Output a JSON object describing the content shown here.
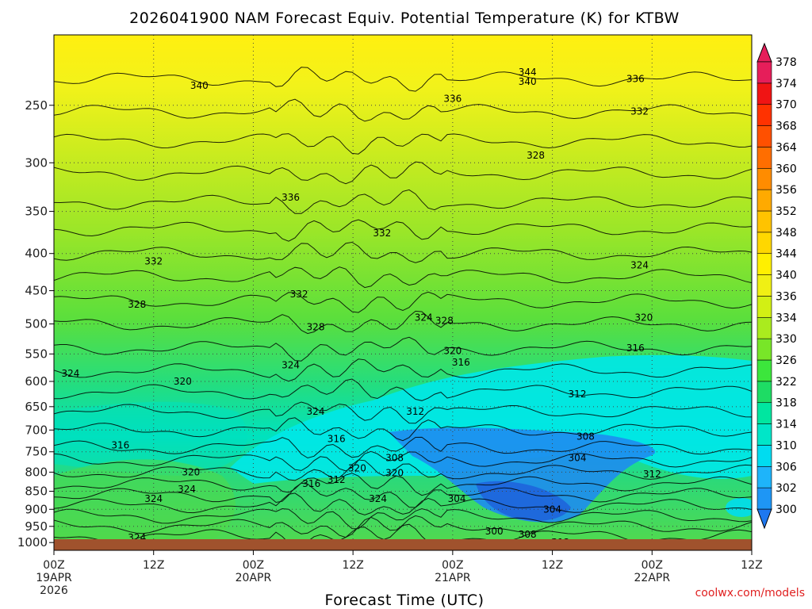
{
  "chart_data": {
    "type": "heatmap",
    "title": "2026041900 NAM Forecast Equiv. Potential Temperature (K) for KTBW",
    "xlabel": "Forecast Time (UTC)",
    "ylabel": "",
    "credit": "coolwx.com/models",
    "x_ticks": [
      {
        "hours": 0,
        "lines": [
          "00Z",
          "19APR",
          "2026"
        ]
      },
      {
        "hours": 12,
        "lines": [
          "12Z"
        ]
      },
      {
        "hours": 24,
        "lines": [
          "00Z",
          "20APR"
        ]
      },
      {
        "hours": 36,
        "lines": [
          "12Z"
        ]
      },
      {
        "hours": 48,
        "lines": [
          "00Z",
          "21APR"
        ]
      },
      {
        "hours": 60,
        "lines": [
          "12Z"
        ]
      },
      {
        "hours": 72,
        "lines": [
          "00Z",
          "22APR"
        ]
      },
      {
        "hours": 84,
        "lines": [
          "12Z"
        ]
      }
    ],
    "xlim": [
      0,
      84
    ],
    "y_ticks": [
      250,
      300,
      350,
      400,
      450,
      500,
      550,
      600,
      650,
      700,
      750,
      800,
      850,
      900,
      950,
      1000
    ],
    "ylim": [
      200,
      1025
    ],
    "yscale": "log",
    "grid": true,
    "colorbar": {
      "levels": [
        300,
        302,
        306,
        310,
        314,
        318,
        322,
        326,
        330,
        334,
        336,
        340,
        344,
        348,
        352,
        356,
        360,
        364,
        368,
        370,
        374,
        378
      ],
      "colors": [
        "#1E78F0",
        "#1E96F5",
        "#1EB4FA",
        "#00DCF0",
        "#00E6C8",
        "#00E6A0",
        "#1EDC64",
        "#3CE63C",
        "#78E628",
        "#AAEB1E",
        "#D2F014",
        "#F0F014",
        "#FFF000",
        "#FFD700",
        "#FFC300",
        "#FFAA00",
        "#FF8C00",
        "#FF6E00",
        "#FF5000",
        "#FF3200",
        "#F01414",
        "#E61E5A"
      ]
    },
    "contour_labels": [
      {
        "hours": 17.5,
        "pres": 235,
        "value": "340"
      },
      {
        "hours": 48,
        "pres": 245,
        "value": "336"
      },
      {
        "hours": 57,
        "pres": 225,
        "value": "344"
      },
      {
        "hours": 57,
        "pres": 232,
        "value": "340"
      },
      {
        "hours": 70,
        "pres": 230,
        "value": "336"
      },
      {
        "hours": 70.5,
        "pres": 255,
        "value": "332"
      },
      {
        "hours": 58,
        "pres": 293,
        "value": "328"
      },
      {
        "hours": 28.5,
        "pres": 335,
        "value": "336"
      },
      {
        "hours": 39.5,
        "pres": 375,
        "value": "332"
      },
      {
        "hours": 12,
        "pres": 410,
        "value": "332"
      },
      {
        "hours": 70.5,
        "pres": 415,
        "value": "324"
      },
      {
        "hours": 29.5,
        "pres": 455,
        "value": "332"
      },
      {
        "hours": 10,
        "pres": 470,
        "value": "328"
      },
      {
        "hours": 44.5,
        "pres": 490,
        "value": "324"
      },
      {
        "hours": 47,
        "pres": 495,
        "value": "328"
      },
      {
        "hours": 31.5,
        "pres": 505,
        "value": "328"
      },
      {
        "hours": 71,
        "pres": 490,
        "value": "320"
      },
      {
        "hours": 70,
        "pres": 540,
        "value": "316"
      },
      {
        "hours": 48,
        "pres": 545,
        "value": "320"
      },
      {
        "hours": 49,
        "pres": 565,
        "value": "316"
      },
      {
        "hours": 2,
        "pres": 585,
        "value": "324"
      },
      {
        "hours": 15.5,
        "pres": 600,
        "value": "320"
      },
      {
        "hours": 28.5,
        "pres": 570,
        "value": "324"
      },
      {
        "hours": 63,
        "pres": 625,
        "value": "312"
      },
      {
        "hours": 43.5,
        "pres": 660,
        "value": "312"
      },
      {
        "hours": 31.5,
        "pres": 660,
        "value": "324"
      },
      {
        "hours": 34,
        "pres": 720,
        "value": "316"
      },
      {
        "hours": 64,
        "pres": 715,
        "value": "308"
      },
      {
        "hours": 8,
        "pres": 735,
        "value": "316"
      },
      {
        "hours": 41,
        "pres": 765,
        "value": "308"
      },
      {
        "hours": 63,
        "pres": 765,
        "value": "304"
      },
      {
        "hours": 16.5,
        "pres": 800,
        "value": "320"
      },
      {
        "hours": 36.5,
        "pres": 790,
        "value": "320"
      },
      {
        "hours": 41,
        "pres": 802,
        "value": "320"
      },
      {
        "hours": 72,
        "pres": 805,
        "value": "312"
      },
      {
        "hours": 34,
        "pres": 820,
        "value": "312"
      },
      {
        "hours": 31,
        "pres": 830,
        "value": "316"
      },
      {
        "hours": 16,
        "pres": 845,
        "value": "324"
      },
      {
        "hours": 39,
        "pres": 870,
        "value": "324"
      },
      {
        "hours": 48.5,
        "pres": 870,
        "value": "304"
      },
      {
        "hours": 12,
        "pres": 870,
        "value": "324"
      },
      {
        "hours": 60,
        "pres": 900,
        "value": "304"
      },
      {
        "hours": 53,
        "pres": 965,
        "value": "300"
      },
      {
        "hours": 57,
        "pres": 975,
        "value": "308"
      },
      {
        "hours": 10,
        "pres": 985,
        "value": "324"
      },
      {
        "hours": 61,
        "pres": 1000,
        "value": "312"
      }
    ]
  }
}
